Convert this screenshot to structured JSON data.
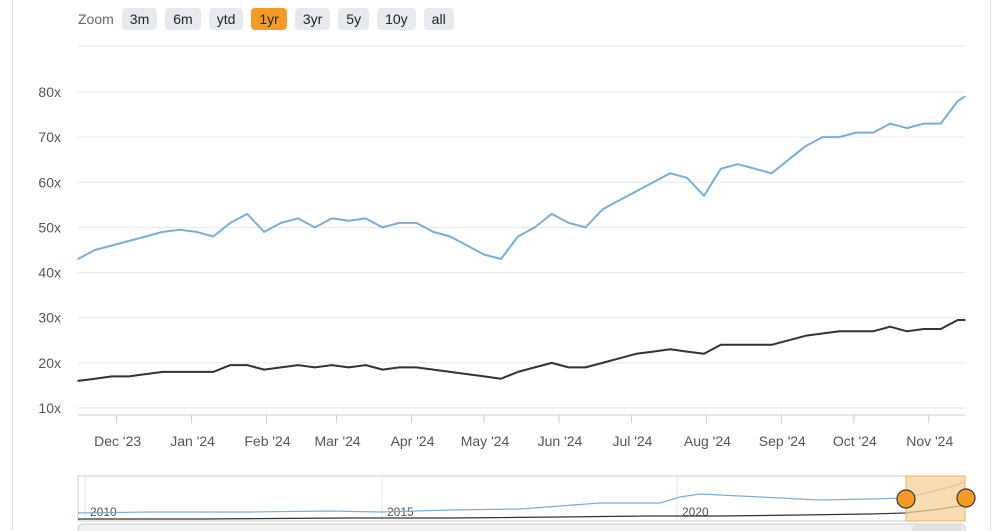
{
  "zoom": {
    "label": "Zoom",
    "options": [
      "3m",
      "6m",
      "ytd",
      "1yr",
      "3yr",
      "5y",
      "10y",
      "all"
    ],
    "selected": "1yr"
  },
  "colors": {
    "series_light": "#7aaed6",
    "series_dark": "#333333",
    "zoom_active": "#f59a23",
    "navigator_mask": "#f8d09a",
    "navigator_handle": "#f59a23"
  },
  "chart_data": {
    "type": "line",
    "title": "",
    "xlabel": "",
    "ylabel": "",
    "ylim": [
      10,
      80
    ],
    "yticks": [
      "10x",
      "20x",
      "30x",
      "40x",
      "50x",
      "60x",
      "70x",
      "80x"
    ],
    "xticks": [
      "Dec '23",
      "Jan '24",
      "Feb '24",
      "Mar '24",
      "Apr '24",
      "May '24",
      "Jun '24",
      "Jul '24",
      "Aug '24",
      "Sep '24",
      "Oct '24",
      "Nov '24"
    ],
    "grid": true,
    "legend": "none",
    "x": [
      "2023-11-15",
      "2023-11-22",
      "2023-11-29",
      "2023-12-06",
      "2023-12-13",
      "2023-12-20",
      "2023-12-27",
      "2024-01-03",
      "2024-01-10",
      "2024-01-17",
      "2024-01-24",
      "2024-01-31",
      "2024-02-07",
      "2024-02-14",
      "2024-02-21",
      "2024-02-28",
      "2024-03-06",
      "2024-03-13",
      "2024-03-20",
      "2024-03-27",
      "2024-04-03",
      "2024-04-10",
      "2024-04-17",
      "2024-04-24",
      "2024-05-01",
      "2024-05-08",
      "2024-05-15",
      "2024-05-22",
      "2024-05-29",
      "2024-06-05",
      "2024-06-12",
      "2024-06-19",
      "2024-06-26",
      "2024-07-03",
      "2024-07-10",
      "2024-07-17",
      "2024-07-24",
      "2024-07-31",
      "2024-08-07",
      "2024-08-14",
      "2024-08-21",
      "2024-08-28",
      "2024-09-04",
      "2024-09-11",
      "2024-09-18",
      "2024-09-25",
      "2024-10-02",
      "2024-10-09",
      "2024-10-16",
      "2024-10-23",
      "2024-10-30",
      "2024-11-06",
      "2024-11-13",
      "2024-11-16"
    ],
    "series": [
      {
        "name": "",
        "values": [
          43,
          45,
          46,
          47,
          48,
          49,
          49.5,
          49,
          48,
          51,
          53,
          49,
          51,
          52,
          50,
          52,
          51.5,
          52,
          50,
          51,
          51,
          49,
          48,
          46,
          44,
          43,
          48,
          50,
          53,
          51,
          50,
          54,
          56,
          58,
          60,
          62,
          61,
          57,
          63,
          64,
          63,
          62,
          65,
          68,
          70,
          70,
          71,
          71,
          73,
          72,
          73,
          73,
          78,
          79
        ]
      },
      {
        "name": "",
        "values": [
          16,
          16.5,
          17,
          17,
          17.5,
          18,
          18,
          18,
          18,
          19.5,
          19.5,
          18.5,
          19,
          19.5,
          19,
          19.5,
          19,
          19.5,
          18.5,
          19,
          19,
          18.5,
          18,
          17.5,
          17,
          16.5,
          18,
          19,
          20,
          19,
          19,
          20,
          21,
          22,
          22.5,
          23,
          22.5,
          22,
          24,
          24,
          24,
          24,
          25,
          26,
          26.5,
          27,
          27,
          27,
          28,
          27,
          27.5,
          27.5,
          29.5,
          29.5
        ]
      }
    ],
    "navigator": {
      "xticks": [
        "2010",
        "2015",
        "2020"
      ]
    }
  }
}
